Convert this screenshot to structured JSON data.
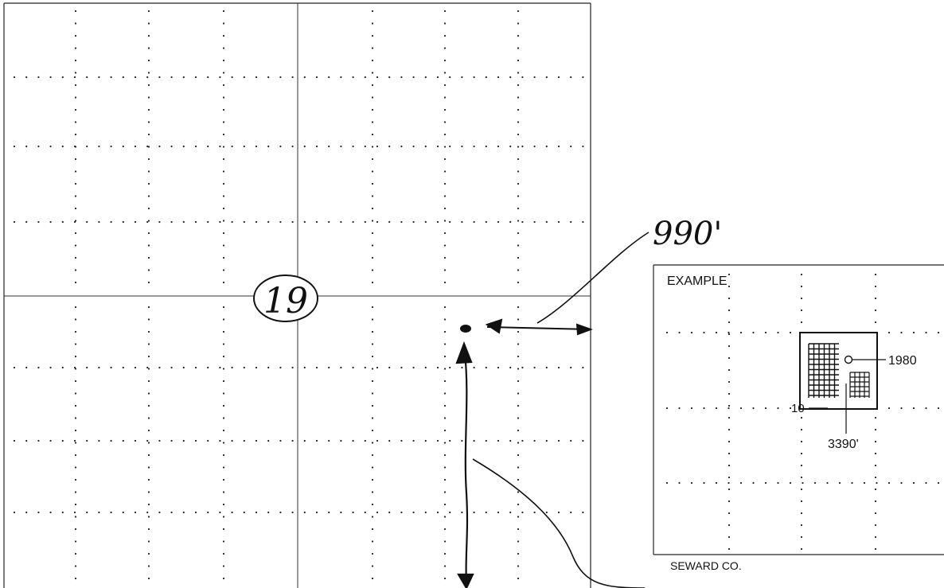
{
  "plat": {
    "section_number": "19",
    "distance_east": "990'"
  },
  "example_box": {
    "heading": "EXAMPLE",
    "well_label_ns": "1980",
    "well_label_ew": "3390'",
    "section_label": "10",
    "county": "SEWARD CO."
  }
}
